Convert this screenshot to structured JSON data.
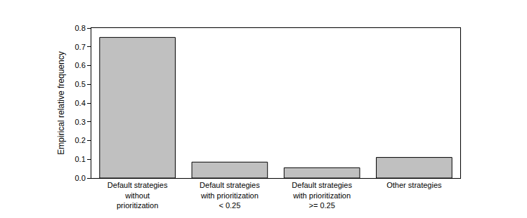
{
  "chart_data": {
    "type": "bar",
    "y_label": "Empirical relative frequency",
    "categories": [
      "Default strategies\nwithout\nprioritization",
      "Default strategies\nwith prioritization\n< 0.25",
      "Default strategies\nwith prioritization\n>= 0.25",
      "Other strategies"
    ],
    "values": [
      0.75,
      0.085,
      0.055,
      0.11
    ],
    "color": "#c0c0c0",
    "ylim": [
      0,
      0.8
    ],
    "yticks": [
      {
        "value": 0,
        "label": "0.0"
      },
      0.1,
      0.2,
      0.3,
      0.4,
      0.5,
      0.6,
      0.7,
      0.8
    ],
    "grid": false
  }
}
